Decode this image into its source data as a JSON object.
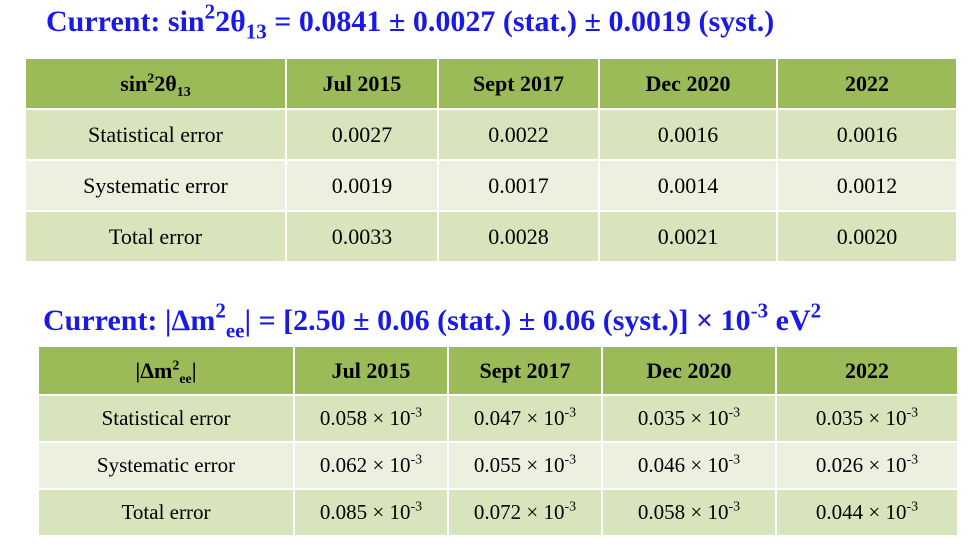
{
  "heading1": {
    "prefix": "Current: sin",
    "sup": "2",
    "mid": "2θ",
    "sub": "13",
    "value": " = 0.0841 ±  0.0027 (stat.) ± 0.0019 (syst.)"
  },
  "table1": {
    "corner": {
      "pre": "sin",
      "sup": "2",
      "mid": "2θ",
      "sub": "13"
    },
    "columns": [
      "Jul 2015",
      "Sept 2017",
      "Dec 2020",
      "2022"
    ],
    "rows": [
      {
        "label": "Statistical error",
        "values": [
          "0.0027",
          "0.0022",
          "0.0016",
          "0.0016"
        ]
      },
      {
        "label": "Systematic error",
        "values": [
          "0.0019",
          "0.0017",
          "0.0014",
          "0.0012"
        ]
      },
      {
        "label": "Total error",
        "values": [
          "0.0033",
          "0.0028",
          "0.0021",
          "0.0020"
        ]
      }
    ]
  },
  "heading2": {
    "prefix": "Current: |Δm",
    "sup1": "2",
    "sub1": "ee",
    "mid": "| = [2.50 ± 0.06 (stat.) ± 0.06 (syst.)] × 10",
    "sup2": "-3",
    "unit": " eV",
    "sup3": "2"
  },
  "table2": {
    "corner": {
      "pre": "|Δm",
      "sup": "2",
      "sub": "ee",
      "post": "|"
    },
    "columns": [
      "Jul 2015",
      "Sept 2017",
      "Dec 2020",
      "2022"
    ],
    "multiplier_base": " × 10",
    "multiplier_exp": "-3",
    "rows": [
      {
        "label": "Statistical error",
        "values": [
          "0.058",
          "0.047",
          "0.035",
          "0.035"
        ]
      },
      {
        "label": "Systematic error",
        "values": [
          "0.062",
          "0.055",
          "0.046",
          "0.026"
        ]
      },
      {
        "label": "Total error",
        "values": [
          "0.085",
          "0.072",
          "0.058",
          "0.044"
        ]
      }
    ]
  },
  "colors": {
    "heading": "#1a1ae6",
    "header_fill": "#9bbb59",
    "row_dark": "#d8e4bc",
    "row_light": "#ebf1de"
  }
}
